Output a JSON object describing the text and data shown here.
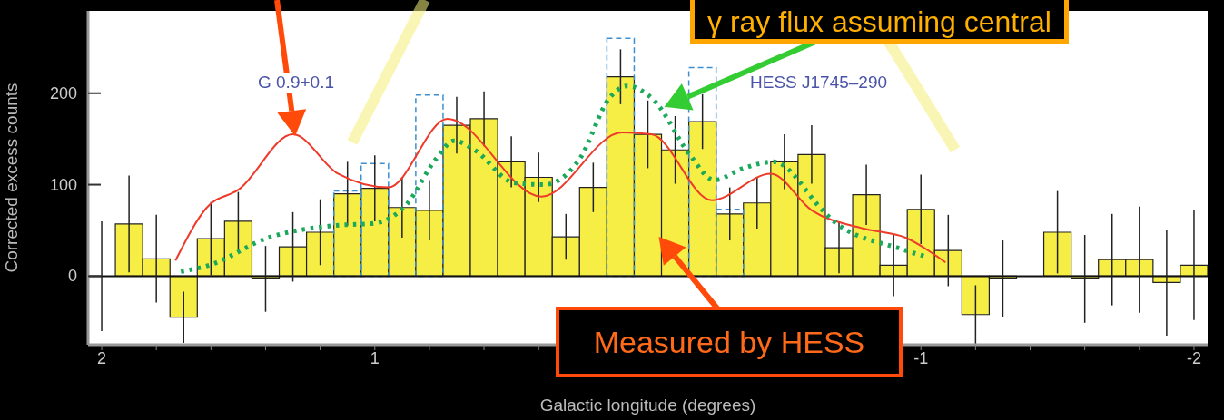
{
  "chart_data": {
    "type": "histogram",
    "xlabel": "Galactic longitude (degrees)",
    "ylabel": "Corrected excess counts",
    "bins": [
      2.05,
      1.95,
      1.85,
      1.75,
      1.65,
      1.55,
      1.45,
      1.35,
      1.25,
      1.15,
      1.05,
      0.95,
      0.85,
      0.75,
      0.65,
      0.55,
      0.45,
      0.35,
      0.25,
      0.15,
      0.05,
      -0.05,
      -0.15,
      -0.25,
      -0.35,
      -0.45,
      -0.55,
      -0.65,
      -0.75,
      -0.85,
      -0.95,
      -1.05,
      -1.15,
      -1.25,
      -1.35,
      -1.45,
      -1.55,
      -1.65,
      -1.75,
      -1.85,
      -1.95,
      -2.05
    ],
    "xlim": [
      2.05,
      -2.05
    ],
    "ylim": [
      -75,
      290
    ],
    "xticks": [
      2,
      {
        "value": 1.8,
        "label": null
      },
      {
        "value": 1.6,
        "label": null
      },
      {
        "value": 1.4,
        "label": null
      },
      {
        "value": 1.2,
        "label": null
      },
      1,
      {
        "value": 0.8,
        "label": null
      },
      {
        "value": 0.6,
        "label": null
      },
      {
        "value": 0.4,
        "label": null
      },
      {
        "value": 0.2,
        "label": null
      },
      {
        "value": 0,
        "label": null
      },
      {
        "value": -0.2,
        "label": null
      },
      {
        "value": -0.4,
        "label": null
      },
      {
        "value": -0.6,
        "label": null
      },
      {
        "value": -0.8,
        "label": null
      },
      -1,
      {
        "value": -1.2,
        "label": null
      },
      {
        "value": -1.4,
        "label": null
      },
      {
        "value": -1.6,
        "label": null
      },
      {
        "value": -1.8,
        "label": null
      },
      -2
    ],
    "yticks": [
      0,
      100,
      200
    ],
    "series": [
      {
        "type": "histogram",
        "color": "#f7ee45",
        "values": [
          0,
          57,
          19,
          -45,
          41,
          60,
          -3,
          32,
          48,
          90,
          96,
          75,
          72,
          165,
          172,
          125,
          108,
          43,
          97,
          218,
          155,
          138,
          169,
          68,
          80,
          125,
          133,
          31,
          89,
          12,
          73,
          28,
          -42,
          -3,
          null,
          48,
          -3,
          18,
          18,
          -7,
          12
        ],
        "errors": [
          60,
          53,
          48,
          28,
          40,
          32,
          36,
          38,
          36,
          35,
          36,
          33,
          33,
          31,
          30,
          28,
          27,
          25,
          27,
          30,
          37,
          37,
          30,
          29,
          28,
          30,
          32,
          28,
          33,
          34,
          38,
          39,
          32,
          42,
          null,
          45,
          48,
          50,
          58,
          58,
          60
        ]
      },
      {
        "type": "line",
        "color": "#ee3a2a",
        "line_style": "solid",
        "x": [
          1.73,
          1.615,
          1.497,
          1.3,
          1.135,
          0.951,
          0.734,
          0.39,
          0.095,
          -0.013,
          -0.234,
          -0.45,
          -0.6,
          -0.79,
          -0.944,
          -1.09
        ],
        "values": [
          17,
          75,
          95,
          155,
          112,
          97,
          172,
          87,
          157,
          155,
          83,
          112,
          72,
          52,
          42,
          15
        ]
      },
      {
        "type": "line",
        "color": "#1aa85a",
        "line_style": "dotted",
        "x": [
          1.71,
          1.606,
          1.39,
          1.16,
          0.997,
          0.885,
          0.776,
          0.71,
          0.635,
          0.49,
          0.38,
          0.25,
          0.14,
          0.076,
          -0.023,
          -0.155,
          -0.243,
          -0.35,
          -0.46,
          -0.64,
          -0.68,
          -0.924,
          -1.01
        ],
        "values": [
          5,
          12,
          42,
          55,
          58,
          78,
          128,
          148,
          138,
          102,
          100,
          128,
          195,
          208,
          192,
          132,
          105,
          118,
          125,
          72,
          60,
          30,
          22
        ]
      },
      {
        "type": "histogram",
        "color": "#3d8fd0",
        "line_style": "dashed",
        "values": [
          null,
          null,
          null,
          null,
          null,
          null,
          null,
          null,
          null,
          93,
          123,
          null,
          198,
          null,
          null,
          null,
          null,
          null,
          null,
          260,
          null,
          null,
          228,
          73,
          null,
          null,
          null,
          null,
          null,
          null,
          null,
          null,
          null,
          null,
          null,
          null,
          null,
          null,
          null,
          null,
          null
        ]
      }
    ],
    "annotations": [
      "G 0.9+0.1",
      "HESS J1745–290",
      {
        "text": "Measured by HESS",
        "x": -0.04,
        "y": 43
      },
      {
        "text": "γ ray flux assuming central",
        "x": -0.06,
        "y": 185
      }
    ]
  }
}
